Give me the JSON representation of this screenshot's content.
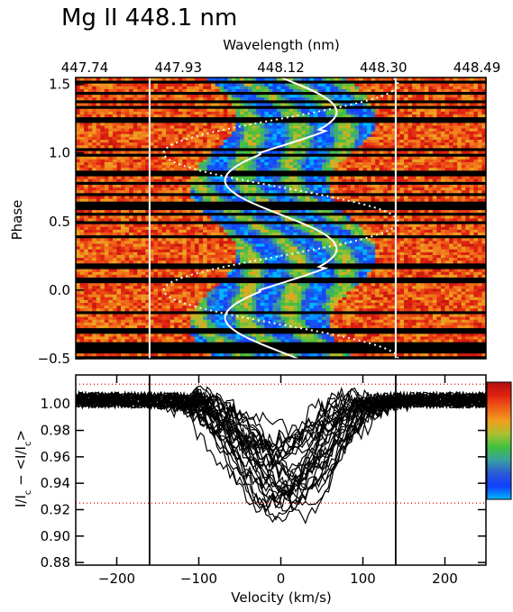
{
  "chart_data": [
    {
      "type": "heatmap",
      "title": "Mg II 448.1 nm",
      "xlabel_top": "Wavelength (nm)",
      "top_ticks": [
        "447.74",
        "447.93",
        "448.12",
        "448.30",
        "448.49"
      ],
      "ylabel": "Phase",
      "ylim": [
        -0.5,
        1.55
      ],
      "y_ticks": [
        -0.5,
        0.0,
        0.5,
        1.0,
        1.5
      ],
      "y_tick_labels": [
        "−0.5",
        "0.0",
        "0.5",
        "1.0",
        "1.5"
      ],
      "xlim": [
        -250,
        250
      ],
      "vertical_lines_kms": [
        -160,
        140
      ],
      "vsini_kms": 85,
      "rv_amplitude_kms": 85,
      "colorscale": [
        "#00b7ff",
        "#1040ff",
        "#2a5ad8",
        "#38a0a0",
        "#40c040",
        "#a8c030",
        "#f0a020",
        "#f06018",
        "#e02010",
        "#b01010"
      ]
    },
    {
      "type": "line",
      "xlabel": "Velocity (km/s)",
      "ylabel": "I/I",
      "ylabel_c": "c",
      "ylabel_mid": " − <I/I",
      "ylabel_end": ">",
      "xlim": [
        -250,
        250
      ],
      "ylim": [
        0.878,
        1.022
      ],
      "x_ticks": [
        -200,
        -100,
        0,
        100,
        200
      ],
      "x_tick_labels": [
        "−200",
        "−100",
        "0",
        "100",
        "200"
      ],
      "y_ticks": [
        0.88,
        0.9,
        0.92,
        0.94,
        0.96,
        0.98,
        1.0
      ],
      "y_tick_labels": [
        "0.88",
        "0.90",
        "0.92",
        "0.94",
        "0.96",
        "0.98",
        "1.00"
      ],
      "dotted_levels": [
        1.015,
        0.925
      ],
      "vertical_lines_kms": [
        -160,
        140
      ],
      "profile_count": 32,
      "profile_depth_range": [
        0.03,
        0.09
      ],
      "profile_width_kms": [
        45,
        80
      ]
    }
  ]
}
